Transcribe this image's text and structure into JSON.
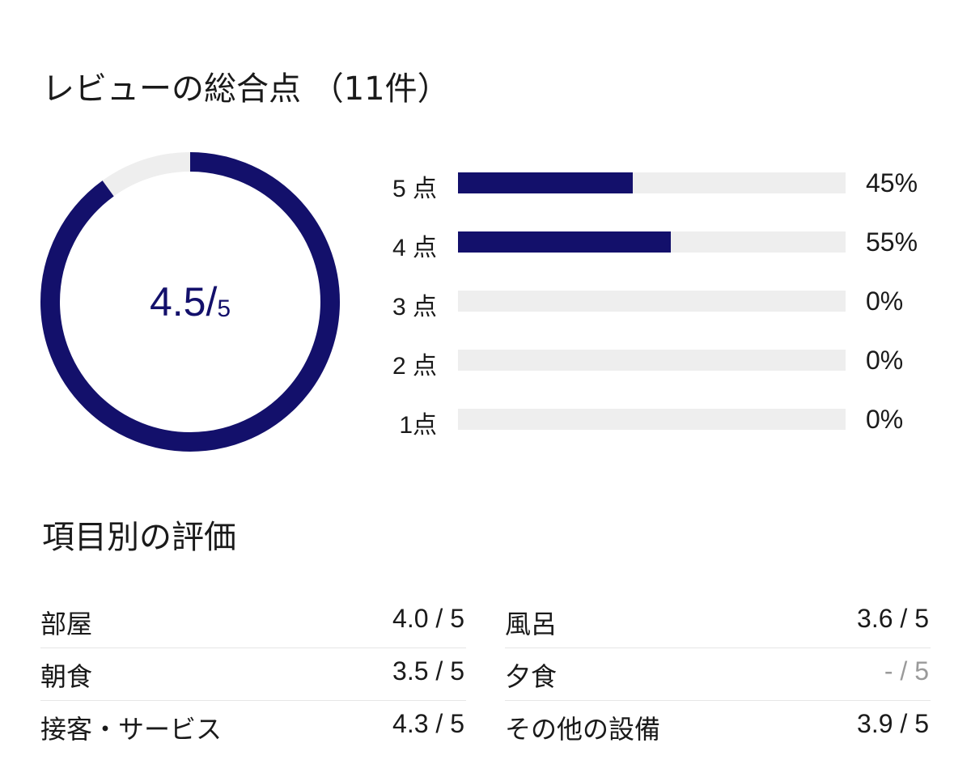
{
  "summary": {
    "title": "レビューの総合点 （11件）",
    "score": "4.5/",
    "score_max": "5",
    "score_fraction": 0.9,
    "ring_color": "#13106b",
    "track_color": "#eeeeee"
  },
  "distribution": [
    {
      "label": "5 点",
      "percent": 45,
      "percent_text": "45%"
    },
    {
      "label": "4 点",
      "percent": 55,
      "percent_text": "55%"
    },
    {
      "label": "3 点",
      "percent": 0,
      "percent_text": "0%"
    },
    {
      "label": "2 点",
      "percent": 0,
      "percent_text": "0%"
    },
    {
      "label": "1点",
      "percent": 0,
      "percent_text": "0%"
    }
  ],
  "categories": {
    "title": "項目別の評価",
    "left": [
      {
        "name": "部屋",
        "score": "4.0 / 5"
      },
      {
        "name": "朝食",
        "score": "3.5 / 5"
      },
      {
        "name": "接客・サービス",
        "score": "4.3 / 5"
      }
    ],
    "right": [
      {
        "name": "風呂",
        "score": "3.6 / 5"
      },
      {
        "name": "夕食",
        "score": "- / 5",
        "empty": true
      },
      {
        "name": "その他の設備",
        "score": "3.9 / 5"
      }
    ]
  }
}
